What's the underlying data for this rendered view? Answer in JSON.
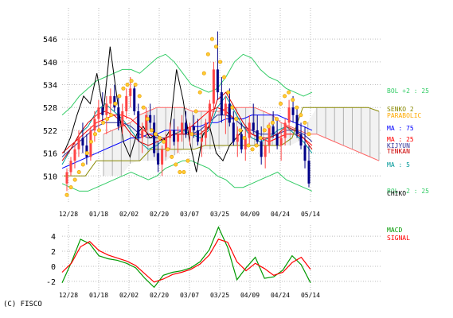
{
  "copyright": "(C) FISCO",
  "chart_data": [
    {
      "type": "candlestick",
      "x_labels": [
        "12/28",
        "01/18",
        "02/02",
        "02/20",
        "03/07",
        "03/25",
        "04/09",
        "04/24",
        "05/14"
      ],
      "y_ticks": [
        510,
        516,
        522,
        528,
        534,
        540,
        546
      ],
      "ylim": [
        504,
        550
      ],
      "grid": true,
      "legend_position": "right",
      "legend": [
        {
          "label": "BOL +2 : 25",
          "color": "#33cc66"
        },
        {
          "label": "SENKO 2",
          "color": "#888800"
        },
        {
          "label": "PARABOLIC",
          "color": "#ffaa00"
        },
        {
          "label": "MA : 75",
          "color": "#0000ff"
        },
        {
          "label": "MA : 25",
          "color": "#ff0000"
        },
        {
          "label": "KIJYUN",
          "color": "#333399"
        },
        {
          "label": "TENKAN",
          "color": "#cc0000"
        },
        {
          "label": "MA : 5",
          "color": "#009999"
        },
        {
          "label": "BOL -2 : 25",
          "color": "#33cc66"
        },
        {
          "label": "CHIKO",
          "color": "#000000"
        }
      ],
      "candles": [
        [
          508,
          512,
          506,
          511
        ],
        [
          511,
          515,
          510,
          514
        ],
        [
          514,
          519,
          512,
          517
        ],
        [
          517,
          522,
          515,
          520
        ],
        [
          520,
          524,
          516,
          518
        ],
        [
          518,
          521,
          513,
          515
        ],
        [
          515,
          523,
          514,
          522
        ],
        [
          522,
          527,
          519,
          525
        ],
        [
          525,
          530,
          522,
          528
        ],
        [
          528,
          532,
          524,
          526
        ],
        [
          526,
          531,
          521,
          529
        ],
        [
          529,
          533,
          526,
          531
        ],
        [
          531,
          534,
          527,
          528
        ],
        [
          528,
          531,
          522,
          523
        ],
        [
          523,
          529,
          521,
          527
        ],
        [
          527,
          533,
          525,
          531
        ],
        [
          531,
          536,
          528,
          533
        ],
        [
          533,
          534,
          526,
          527
        ],
        [
          527,
          529,
          519,
          520
        ],
        [
          520,
          524,
          516,
          522
        ],
        [
          522,
          528,
          520,
          526
        ],
        [
          526,
          529,
          522,
          524
        ],
        [
          524,
          526,
          515,
          516
        ],
        [
          516,
          519,
          511,
          513
        ],
        [
          513,
          518,
          510,
          517
        ],
        [
          517,
          521,
          515,
          520
        ],
        [
          520,
          524,
          517,
          522
        ],
        [
          522,
          525,
          518,
          519
        ],
        [
          519,
          523,
          516,
          521
        ],
        [
          521,
          526,
          519,
          524
        ],
        [
          524,
          527,
          520,
          521
        ],
        [
          521,
          524,
          518,
          523
        ],
        [
          523,
          526,
          520,
          522
        ],
        [
          522,
          525,
          518,
          519
        ],
        [
          519,
          522,
          515,
          520
        ],
        [
          520,
          525,
          518,
          524
        ],
        [
          524,
          530,
          522,
          529
        ],
        [
          529,
          540,
          527,
          538
        ],
        [
          538,
          548,
          530,
          532
        ],
        [
          532,
          536,
          524,
          526
        ],
        [
          526,
          531,
          521,
          529
        ],
        [
          529,
          533,
          523,
          524
        ],
        [
          524,
          527,
          518,
          519
        ],
        [
          519,
          523,
          515,
          521
        ],
        [
          521,
          524,
          516,
          517
        ],
        [
          517,
          522,
          514,
          520
        ],
        [
          520,
          526,
          518,
          524
        ],
        [
          524,
          529,
          521,
          522
        ],
        [
          522,
          526,
          518,
          519
        ],
        [
          519,
          523,
          513,
          515
        ],
        [
          515,
          520,
          512,
          518
        ],
        [
          518,
          524,
          516,
          523
        ],
        [
          523,
          527,
          520,
          521
        ],
        [
          521,
          525,
          517,
          518
        ],
        [
          518,
          522,
          514,
          520
        ],
        [
          520,
          525,
          518,
          524
        ],
        [
          524,
          530,
          522,
          528
        ],
        [
          528,
          531,
          524,
          526
        ],
        [
          526,
          528,
          520,
          521
        ],
        [
          521,
          524,
          517,
          518
        ],
        [
          518,
          523,
          512,
          514
        ],
        [
          514,
          518,
          507,
          508
        ]
      ],
      "series": [
        {
          "name": "BOL +2 : 25",
          "color": "#33cc66",
          "values": [
            526,
            528,
            531,
            533,
            535,
            536,
            537,
            538,
            538,
            537,
            539,
            541,
            542,
            540,
            537,
            534,
            533,
            532,
            533,
            536,
            540,
            542,
            541,
            538,
            536,
            535,
            533,
            532,
            531,
            532
          ]
        },
        {
          "name": "BOL -2 : 25",
          "color": "#33cc66",
          "values": [
            508,
            507,
            506,
            506,
            507,
            508,
            509,
            510,
            511,
            510,
            509,
            510,
            512,
            513,
            514,
            514,
            513,
            512,
            510,
            509,
            507,
            507,
            508,
            509,
            510,
            511,
            509,
            508,
            507,
            506
          ]
        },
        {
          "name": "MA : 75",
          "color": "#0000ff",
          "values": [
            512,
            513,
            514,
            515,
            516,
            517,
            518,
            519,
            520,
            520,
            521,
            521,
            522,
            522,
            522,
            523,
            523,
            524,
            524,
            525,
            525,
            525,
            526,
            526,
            526,
            526,
            525,
            524,
            523,
            522
          ]
        },
        {
          "name": "MA : 25",
          "color": "#ff0000",
          "values": [
            516,
            518,
            520,
            522,
            524,
            525,
            526,
            526,
            525,
            523,
            521,
            520,
            520,
            521,
            522,
            523,
            525,
            527,
            528,
            527,
            525,
            523,
            521,
            520,
            519,
            520,
            521,
            521,
            520,
            518
          ]
        },
        {
          "name": "MA : 5",
          "color": "#009999",
          "values": [
            513,
            517,
            521,
            523,
            527,
            529,
            527,
            525,
            522,
            519,
            517,
            518,
            520,
            521,
            522,
            521,
            520,
            522,
            528,
            531,
            527,
            523,
            520,
            519,
            520,
            522,
            523,
            521,
            519,
            516
          ]
        },
        {
          "name": "KIJYUN",
          "color": "#333399",
          "values": [
            515,
            517,
            519,
            521,
            523,
            524,
            524,
            524,
            523,
            521,
            520,
            520,
            520,
            521,
            521,
            521,
            522,
            524,
            526,
            526,
            525,
            523,
            522,
            521,
            521,
            521,
            522,
            522,
            521,
            519
          ]
        },
        {
          "name": "TENKAN",
          "color": "#cc0000",
          "values": [
            514,
            517,
            521,
            524,
            526,
            527,
            526,
            524,
            521,
            519,
            518,
            519,
            520,
            521,
            521,
            521,
            521,
            523,
            530,
            532,
            528,
            524,
            521,
            520,
            520,
            521,
            523,
            522,
            520,
            517
          ]
        },
        {
          "name": "SENKO 2",
          "color": "#888800",
          "values": [
            510,
            510,
            510,
            514,
            514,
            514,
            514,
            514,
            517,
            517,
            517,
            517,
            517,
            518,
            518,
            518,
            518,
            518,
            518,
            518,
            518,
            520,
            528,
            528,
            528,
            528,
            528,
            528,
            528,
            527
          ]
        },
        {
          "name": "CHIKO",
          "color": "#000000",
          "values": [
            516,
            520,
            526,
            531,
            529,
            537,
            527,
            544,
            531,
            519,
            515,
            521,
            523,
            520,
            521,
            519,
            522,
            538,
            530,
            519,
            511,
            521,
            523,
            516,
            514,
            518,
            520,
            522
          ]
        }
      ],
      "cloud_upper": [
        521,
        522,
        523,
        524,
        526,
        527,
        528,
        528,
        528,
        528,
        527,
        527,
        527,
        527,
        528,
        528,
        528,
        528,
        527,
        526,
        524,
        523,
        522,
        521,
        521,
        520,
        519,
        518,
        517,
        516,
        515,
        514
      ],
      "parabolic": [
        505,
        507,
        509,
        511,
        513,
        516,
        519,
        521,
        522,
        524,
        525,
        526,
        529,
        531,
        533,
        534,
        535,
        534,
        531,
        528,
        525,
        522,
        521,
        520,
        519,
        517,
        515,
        513,
        511,
        511,
        514,
        521,
        527,
        532,
        537,
        542,
        546,
        544,
        540,
        536,
        532,
        528,
        525,
        522,
        520,
        518,
        517,
        518,
        520,
        522,
        523,
        524,
        525,
        529,
        531,
        532,
        530,
        528,
        526,
        524,
        521
      ]
    },
    {
      "type": "line",
      "x_labels": [
        "12/28",
        "01/18",
        "02/02",
        "02/20",
        "03/07",
        "03/25",
        "04/09",
        "04/24",
        "05/14"
      ],
      "y_ticks": [
        -2,
        0,
        2,
        4
      ],
      "ylim": [
        -3.5,
        5.5
      ],
      "grid": true,
      "legend": [
        {
          "label": "MACD",
          "color": "#009900"
        },
        {
          "label": "SIGNAL",
          "color": "#ff0000"
        }
      ],
      "series": [
        {
          "name": "MACD",
          "color": "#009900",
          "values": [
            -2.2,
            0.5,
            3.6,
            3.0,
            1.4,
            1.0,
            0.8,
            0.4,
            -0.2,
            -1.6,
            -2.8,
            -1.2,
            -0.8,
            -0.6,
            -0.2,
            0.6,
            2.2,
            5.2,
            2.5,
            -1.8,
            -0.2,
            1.2,
            -1.6,
            -1.4,
            -0.5,
            1.4,
            0.2,
            -2.2
          ]
        },
        {
          "name": "SIGNAL",
          "color": "#ff0000",
          "values": [
            -0.8,
            0.4,
            2.6,
            3.3,
            2.1,
            1.5,
            1.1,
            0.7,
            0.1,
            -1.0,
            -2.1,
            -1.7,
            -1.1,
            -0.8,
            -0.4,
            0.3,
            1.5,
            3.6,
            3.2,
            0.6,
            -0.6,
            0.4,
            -0.3,
            -1.2,
            -0.8,
            0.5,
            1.2,
            -0.4
          ]
        }
      ]
    }
  ]
}
